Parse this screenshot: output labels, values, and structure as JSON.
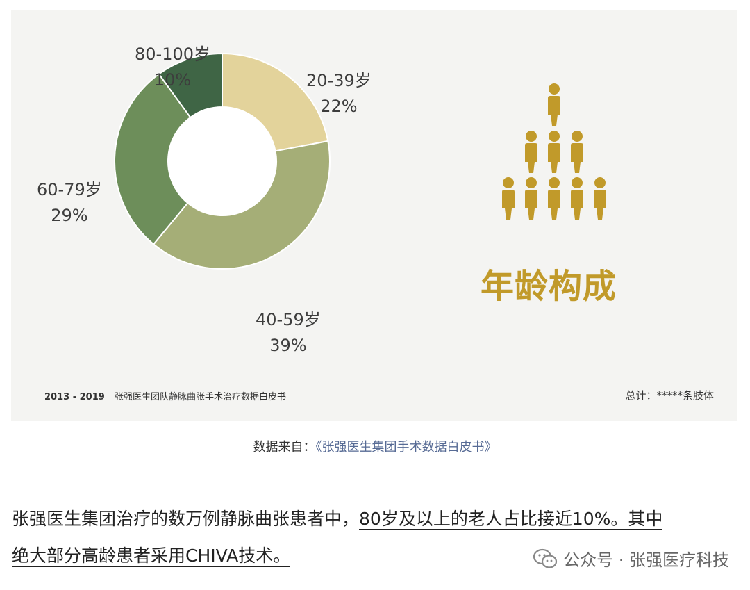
{
  "chart_data": {
    "type": "pie",
    "categories": [
      "20-39岁",
      "40-59岁",
      "60-79岁",
      "80-100岁"
    ],
    "values": [
      22,
      39,
      29,
      10
    ],
    "value_labels": [
      "22%",
      "39%",
      "29%",
      "10%"
    ],
    "colors": [
      "#e3d39b",
      "#a5ae77",
      "#6d8e5a",
      "#3f6545"
    ]
  },
  "title": "年龄构成",
  "footer": {
    "years": "2013 - 2019",
    "source_text": "张强医生团队静脉曲张手术治疗数据白皮书",
    "total": "总计：*****条肢体"
  },
  "source": {
    "prefix": "数据来自：",
    "link": "《张强医生集团手术数据白皮书》"
  },
  "paragraph": {
    "part1": "张强医生集团治疗的数万例静脉曲张患者中，",
    "highlight1": "80岁及以上的老人占比接近10%。其中",
    "highlight2": "绝大部分高龄患者采用CHIVA技术。"
  },
  "watermark": {
    "text": "公众号 · 张强医疗科技",
    "icon": "wechat-icon"
  },
  "icons": {
    "people": "people-pyramid-icon",
    "person_color": "#c19a2a"
  }
}
